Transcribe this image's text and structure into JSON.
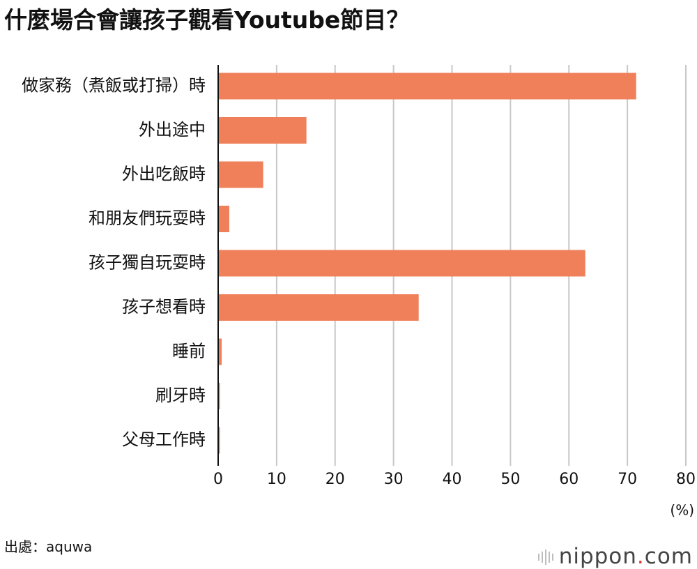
{
  "title": "什麼場合會讓孩子觀看Youtube節目？",
  "source": "出處：aquwa",
  "logo": {
    "brand": "nippon",
    "dot": ".",
    "tld": "com"
  },
  "colors": {
    "bar": "#f0805a",
    "grid": "#c8c8c8",
    "axis": "#111111"
  },
  "chart_data": {
    "type": "bar",
    "orientation": "horizontal",
    "categories": [
      "做家務（煮飯或打掃）時",
      "外出途中",
      "外出吃飯時",
      "和朋友們玩耍時",
      "孩子獨自玩耍時",
      "孩子想看時",
      "睡前",
      "刷牙時",
      "父母工作時"
    ],
    "values": [
      71.5,
      15.1,
      7.7,
      1.9,
      62.8,
      34.3,
      0.6,
      0.3,
      0.3
    ],
    "xlim": [
      0,
      80
    ],
    "xticks": [
      0,
      10,
      20,
      30,
      40,
      50,
      60,
      70,
      80
    ],
    "unit": "(%)",
    "grid": true
  }
}
